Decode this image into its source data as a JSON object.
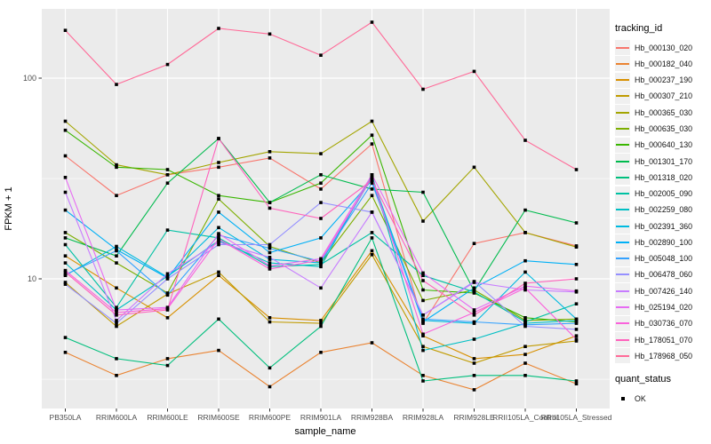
{
  "figure": {
    "y_axis": {
      "label": "FPKM + 1",
      "tick_labels": [
        "100",
        "10"
      ]
    },
    "x_axis": {
      "label": "sample_name"
    },
    "legend": {
      "tracking_title": "tracking_id",
      "quant_title": "quant_status",
      "quant_items": [
        {
          "label": "OK",
          "marker": "black-square"
        }
      ]
    },
    "panel": {
      "background": "#EBEBEB",
      "grid_color": "#FFFFFF",
      "tick_color": "#333333",
      "tick_label_color": "#4D4D4D",
      "point_color": "#000000"
    }
  },
  "chart_data": {
    "type": "line",
    "title": "",
    "xlabel": "sample_name",
    "ylabel": "FPKM + 1",
    "y_scale": "log10",
    "y_ticks": [
      100,
      10
    ],
    "y_minor_ticks": [
      31.6,
      3.16
    ],
    "ylim": [
      2.2,
      220
    ],
    "grid": "on",
    "legend_position": "right",
    "marker": "black-square",
    "x_categories": [
      "PB350LA",
      "RRIM600LA",
      "RRIM600LE",
      "RRIM600SE",
      "RRIM600PE",
      "RRIM901LA",
      "RRIM928BA",
      "RRIM928LA",
      "RRIM928LE",
      "RRII105LA_Control",
      "RRII105LA_Stressed"
    ],
    "series": [
      {
        "name": "Hb_000130_020",
        "color": "#F8766D",
        "values": [
          41,
          26,
          33,
          36,
          40,
          28,
          47,
          6.0,
          15,
          17,
          14.6
        ]
      },
      {
        "name": "Hb_000182_040",
        "color": "#EA8331",
        "values": [
          4.3,
          3.3,
          4.0,
          4.4,
          2.9,
          4.3,
          4.8,
          3.3,
          2.8,
          3.8,
          3.0
        ]
      },
      {
        "name": "Hb_000237_190",
        "color": "#D89000",
        "values": [
          13,
          9.0,
          6.4,
          10.4,
          6.4,
          6.2,
          13.8,
          5.2,
          4.0,
          4.2,
          5.2
        ]
      },
      {
        "name": "Hb_000307_210",
        "color": "#C09B00",
        "values": [
          9.6,
          5.8,
          8.4,
          10.8,
          6.1,
          6.0,
          13.2,
          4.6,
          3.8,
          4.6,
          4.9
        ]
      },
      {
        "name": "Hb_000365_030",
        "color": "#A3A500",
        "values": [
          61,
          37,
          33,
          38,
          43,
          42,
          61,
          19.4,
          36,
          17,
          14.4
        ]
      },
      {
        "name": "Hb_000635_030",
        "color": "#7CAE00",
        "values": [
          17,
          12,
          8.5,
          25,
          14.5,
          12,
          26,
          7.8,
          8.8,
          6.2,
          6.3
        ]
      },
      {
        "name": "Hb_000640_130",
        "color": "#39B600",
        "values": [
          55,
          36,
          35,
          26,
          24,
          30,
          52,
          8.8,
          8.5,
          6.4,
          6.1
        ]
      },
      {
        "name": "Hb_001301_170",
        "color": "#00BB4E",
        "values": [
          16,
          13,
          30,
          50,
          24,
          33,
          28,
          27,
          8.7,
          22,
          19
        ]
      },
      {
        "name": "Hb_001318_020",
        "color": "#00BF7D",
        "values": [
          5.1,
          4.0,
          3.7,
          6.3,
          3.6,
          5.8,
          16,
          3.1,
          3.3,
          3.3,
          3.1
        ]
      },
      {
        "name": "Hb_002005_090",
        "color": "#00C1A3",
        "values": [
          14.8,
          7.2,
          17.5,
          16,
          11.5,
          11.8,
          17,
          10.4,
          8.6,
          6.1,
          7.5
        ]
      },
      {
        "name": "Hb_002259_080",
        "color": "#00BFC4",
        "values": [
          12,
          7.0,
          10.3,
          15.5,
          12,
          11.5,
          33,
          4.4,
          5.0,
          6.0,
          6.2
        ]
      },
      {
        "name": "Hb_002391_360",
        "color": "#00BAE0",
        "values": [
          10.4,
          14.5,
          10.2,
          18,
          12.5,
          12,
          32,
          6.2,
          6.0,
          10.8,
          6.3
        ]
      },
      {
        "name": "Hb_002890_100",
        "color": "#00B0F6",
        "values": [
          22,
          14,
          10.1,
          21.5,
          13.5,
          16,
          31,
          6.1,
          9.0,
          12.3,
          11.8
        ]
      },
      {
        "name": "Hb_005048_100",
        "color": "#35A2FF",
        "values": [
          10.5,
          13.8,
          8.3,
          16.5,
          14.2,
          12.2,
          30,
          6.3,
          6.1,
          5.9,
          6.0
        ]
      },
      {
        "name": "Hb_006478_060",
        "color": "#9590FF",
        "values": [
          9.4,
          6.0,
          10.0,
          14.8,
          14.8,
          24,
          21.5,
          6.6,
          9.7,
          5.8,
          5.6
        ]
      },
      {
        "name": "Hb_007426_140",
        "color": "#C77CFF",
        "values": [
          27,
          6.2,
          10.6,
          15.2,
          12.8,
          9.0,
          21.5,
          6.6,
          9.6,
          8.8,
          8.6
        ]
      },
      {
        "name": "Hb_025194_020",
        "color": "#E76BF3",
        "values": [
          32,
          7.0,
          7.2,
          16.8,
          11.6,
          12.6,
          33,
          10.7,
          7.0,
          9.2,
          8.7
        ]
      },
      {
        "name": "Hb_030736_070",
        "color": "#FA62DB",
        "values": [
          11,
          6.8,
          7.1,
          15.8,
          11.2,
          12.4,
          32,
          5.3,
          6.8,
          9.0,
          5.0
        ]
      },
      {
        "name": "Hb_178051_070",
        "color": "#FF62BC",
        "values": [
          10.8,
          6.6,
          7.0,
          50,
          22.5,
          20,
          31,
          9.8,
          6.6,
          9.5,
          10.0
        ]
      },
      {
        "name": "Hb_178968_050",
        "color": "#FF6A98",
        "values": [
          173,
          93,
          117,
          177,
          166,
          130,
          190,
          88,
          108,
          49,
          35
        ]
      }
    ]
  }
}
